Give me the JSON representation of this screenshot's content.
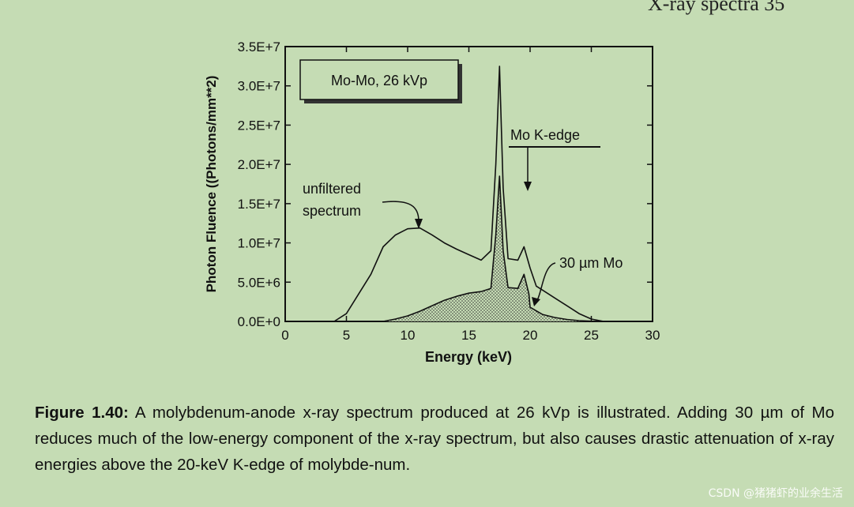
{
  "page_header": "X-ray spectra 35",
  "chart_data": {
    "type": "area",
    "title": "",
    "xlabel": "Energy (keV)",
    "ylabel": "Photon Fluence ((Photons/mm**2)",
    "xlim": [
      0,
      30
    ],
    "ylim": [
      0,
      35000000
    ],
    "x_ticks": [
      "0",
      "5",
      "10",
      "15",
      "20",
      "25",
      "30"
    ],
    "y_ticks": [
      "0.0E+0",
      "5.0E+6",
      "1.0E+7",
      "1.5E+7",
      "2.0E+7",
      "2.5E+7",
      "3.0E+7",
      "3.5E+7"
    ],
    "grid": false,
    "inset_label": "Mo-Mo, 26 kVp",
    "annotations": {
      "unfiltered": [
        "unfiltered",
        "spectrum"
      ],
      "kedge": "Mo K-edge",
      "filtered": "30 µm Mo"
    },
    "series": [
      {
        "name": "unfiltered spectrum",
        "fill": false,
        "x": [
          4,
          5,
          6,
          7,
          8,
          9,
          10,
          11,
          12,
          13,
          14,
          15,
          16,
          16.8,
          17.2,
          17.5,
          17.8,
          18.2,
          19,
          19.5,
          20,
          20.5,
          21,
          22,
          23,
          24,
          25,
          26
        ],
        "y": [
          0,
          1000000,
          3500000,
          6000000,
          9500000,
          11000000,
          11800000,
          11900000,
          11000000,
          10000000,
          9200000,
          8500000,
          7800000,
          9000000,
          20000000,
          32500000,
          17000000,
          8000000,
          7800000,
          9500000,
          6800000,
          4500000,
          4000000,
          3000000,
          2000000,
          1000000,
          300000,
          0
        ]
      },
      {
        "name": "30 µm Mo",
        "fill": true,
        "x": [
          8,
          9,
          10,
          11,
          12,
          13,
          14,
          15,
          16,
          16.8,
          17.2,
          17.5,
          17.8,
          18.2,
          19,
          19.5,
          19.9,
          20,
          21,
          22,
          23,
          24,
          25,
          26
        ],
        "y": [
          0,
          300000,
          700000,
          1300000,
          2000000,
          2700000,
          3200000,
          3600000,
          3800000,
          4200000,
          11000000,
          18500000,
          9000000,
          4300000,
          4200000,
          6000000,
          3500000,
          1800000,
          900000,
          500000,
          250000,
          100000,
          30000,
          0
        ]
      }
    ]
  },
  "caption": {
    "label": "Figure 1.40:",
    "text": "A molybdenum-anode x-ray spectrum produced at 26 kVp is illustrated. Adding 30 µm of Mo reduces much of the low-energy component of the x-ray spectrum, but also causes drastic attenuation of x-ray energies above the 20-keV K-edge of molybde-num."
  },
  "watermark": "CSDN @猪猪虾的业余生活"
}
